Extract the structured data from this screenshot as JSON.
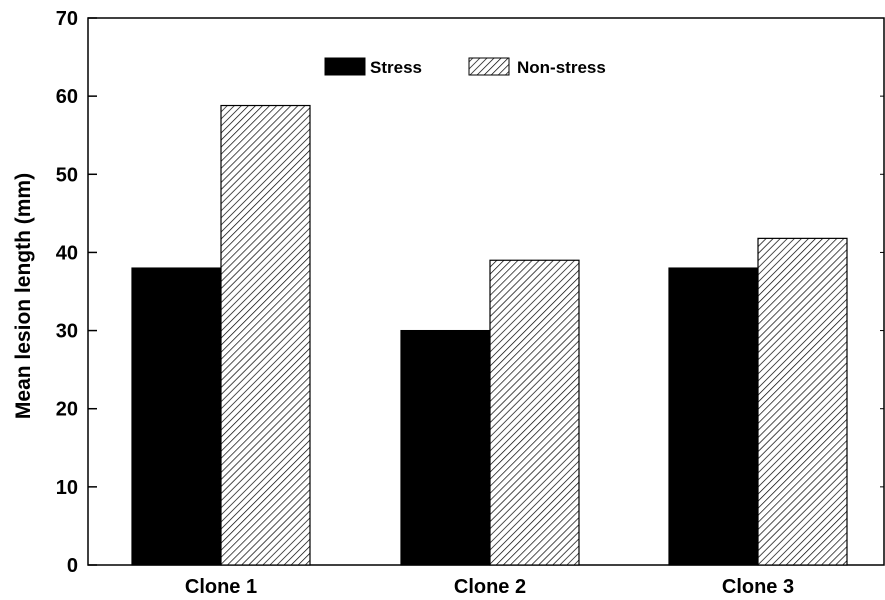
{
  "chart_data": {
    "type": "bar",
    "categories": [
      "Clone 1",
      "Clone 2",
      "Clone 3"
    ],
    "series": [
      {
        "name": "Stress",
        "values": [
          38,
          30,
          38
        ],
        "color": "#000000",
        "fill": "solid"
      },
      {
        "name": "Non-stress",
        "values": [
          58.8,
          39,
          41.8
        ],
        "color": "#000000",
        "fill": "diagonal-hatch"
      }
    ],
    "title": "",
    "xlabel": "",
    "ylabel": "Mean lesion length (mm)",
    "ylim": [
      0,
      70
    ],
    "yticks": [
      0,
      10,
      20,
      30,
      40,
      50,
      60,
      70
    ],
    "grid": false,
    "legend_position": "top-center"
  }
}
